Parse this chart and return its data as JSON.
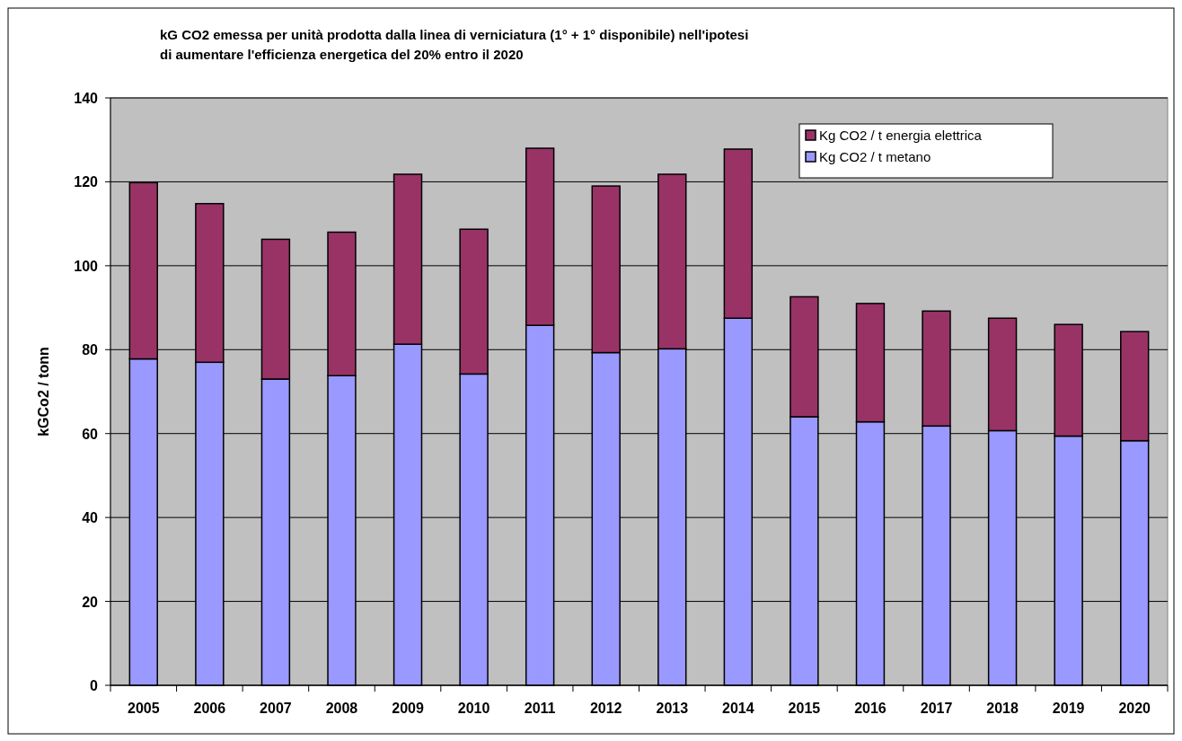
{
  "chart_data": {
    "type": "bar",
    "stacked": true,
    "title": "kG CO2 emessa per unità prodotta dalla linea di verniciatura (1° + 1° disponibile) nell'ipotesi di aumentare l'efficienza energetica del 20% entro il 2020",
    "ylabel": "kGCo2 / tonn",
    "categories": [
      "2005",
      "2006",
      "2007",
      "2008",
      "2009",
      "2010",
      "2011",
      "2012",
      "2013",
      "2014",
      "2015",
      "2016",
      "2017",
      "2018",
      "2019",
      "2020"
    ],
    "series": [
      {
        "name": "Kg CO2 / t metano",
        "color": "#9999ff",
        "values": [
          77.8,
          77,
          73,
          73.8,
          81.3,
          74.2,
          85.8,
          79.3,
          80.2,
          87.5,
          64,
          62.8,
          61.8,
          60.7,
          59.4,
          58.3
        ]
      },
      {
        "name": "Kg CO2 / t energia elettrica",
        "color": "#993366",
        "values": [
          42,
          37.8,
          33.3,
          34.2,
          40.5,
          34.5,
          42.2,
          39.7,
          41.6,
          40.3,
          28.6,
          28.2,
          27.4,
          26.8,
          26.6,
          26
        ]
      }
    ],
    "ylim": [
      0,
      140
    ],
    "yticks": [
      0,
      20,
      40,
      60,
      80,
      100,
      120,
      140
    ],
    "grid": "y",
    "legend": "top right"
  }
}
